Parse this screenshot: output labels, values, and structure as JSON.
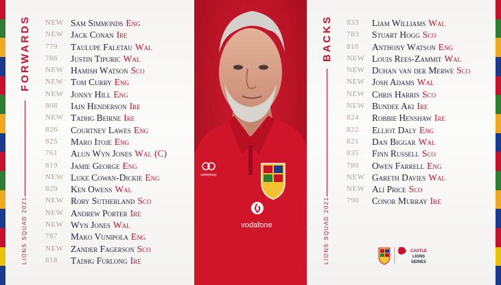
{
  "colors": {
    "accent": "#c8102e",
    "name_text": "#1f2235",
    "number_text": "#b1a197",
    "photo_background": "#b5121f",
    "stripes": [
      "#c8102e",
      "#2e7d32",
      "#f0a81e",
      "#1a3a8f",
      "#c8102e",
      "#2e7d32",
      "#f0a81e",
      "#1a3a8f",
      "#c8102e",
      "#2e7d32",
      "#f0a81e",
      "#1a3a8f",
      "#c8102e",
      "#e8c400",
      "#1a3a8f"
    ]
  },
  "forwards": {
    "heading": "FORWARDS",
    "side_label": "LIONS SQUAD 2021",
    "players": [
      {
        "num": "NEW",
        "name": "Sam Simmonds",
        "nation": "Eng"
      },
      {
        "num": "NEW",
        "name": "Jack Conan",
        "nation": "Ire"
      },
      {
        "num": "779",
        "name": "Taulupe Faletau",
        "nation": "Wal"
      },
      {
        "num": "786",
        "name": "Justin Tipuric",
        "nation": "Wal"
      },
      {
        "num": "NEW",
        "name": "Hamish Watson",
        "nation": "Sco"
      },
      {
        "num": "NEW",
        "name": "Tom Curry",
        "nation": "Eng"
      },
      {
        "num": "NEW",
        "name": "Jonny Hill",
        "nation": "Eng"
      },
      {
        "num": "808",
        "name": "Iain Henderson",
        "nation": "Ire"
      },
      {
        "num": "NEW",
        "name": "Tadhg Beirne",
        "nation": "Ire"
      },
      {
        "num": "826",
        "name": "Courtney Lawes",
        "nation": "Eng"
      },
      {
        "num": "825",
        "name": "Maro Itoje",
        "nation": "Eng"
      },
      {
        "num": "761",
        "name": "Alun Wyn Jones",
        "nation": "Wal",
        "captain": "(C)"
      },
      {
        "num": "819",
        "name": "Jamie George",
        "nation": "Eng"
      },
      {
        "num": "NEW",
        "name": "Luke Cowan-Dickie",
        "nation": "Eng"
      },
      {
        "num": "829",
        "name": "Ken Owens",
        "nation": "Wal"
      },
      {
        "num": "NEW",
        "name": "Rory Sutherland",
        "nation": "Sco"
      },
      {
        "num": "NEW",
        "name": "Andrew Porter",
        "nation": "Ire"
      },
      {
        "num": "NEW",
        "name": "Wyn Jones",
        "nation": "Wal"
      },
      {
        "num": "787",
        "name": "Mako Vunipola",
        "nation": "Eng"
      },
      {
        "num": "NEW",
        "name": "Zander Fagerson",
        "nation": "Sco"
      },
      {
        "num": "818",
        "name": "Tadhg Furlong",
        "nation": "Ire"
      }
    ]
  },
  "backs": {
    "heading": "BACKS",
    "side_label": "LIONS SQUAD 2021",
    "players": [
      {
        "num": "833",
        "name": "Liam Williams",
        "nation": "Wal"
      },
      {
        "num": "783",
        "name": "Stuart Hogg",
        "nation": "Sco"
      },
      {
        "num": "816",
        "name": "Anthony Watson",
        "nation": "Eng"
      },
      {
        "num": "NEW",
        "name": "Louis Rees-Zammit",
        "nation": "Wal"
      },
      {
        "num": "NEW",
        "name": "Duhan van der Merwe",
        "nation": "Sco"
      },
      {
        "num": "NEW",
        "name": "Josh Adams",
        "nation": "Wal"
      },
      {
        "num": "NEW",
        "name": "Chris Harris",
        "nation": "Sco"
      },
      {
        "num": "NEW",
        "name": "Bundee Aki",
        "nation": "Ire"
      },
      {
        "num": "824",
        "name": "Robbie Henshaw",
        "nation": "Ire"
      },
      {
        "num": "822",
        "name": "Elliot Daly",
        "nation": "Eng"
      },
      {
        "num": "821",
        "name": "Dan Biggar",
        "nation": "Wal"
      },
      {
        "num": "835",
        "name": "Finn Russell",
        "nation": "Sco"
      },
      {
        "num": "780",
        "name": "Owen Farrell",
        "nation": "Eng"
      },
      {
        "num": "NEW",
        "name": "Gareth Davies",
        "nation": "Wal"
      },
      {
        "num": "NEW",
        "name": "Ali Price",
        "nation": "Sco"
      },
      {
        "num": "790",
        "name": "Conor Murray",
        "nation": "Ire"
      }
    ]
  },
  "photo": {
    "shirt_brand": "canterbury",
    "sponsor": "vodafone"
  },
  "logos": {
    "series_badge_lines": [
      "CASTLE",
      "LIONS",
      "SERIES"
    ],
    "icons": [
      "lions-crest-icon",
      "castle-lions-series-logo"
    ]
  }
}
